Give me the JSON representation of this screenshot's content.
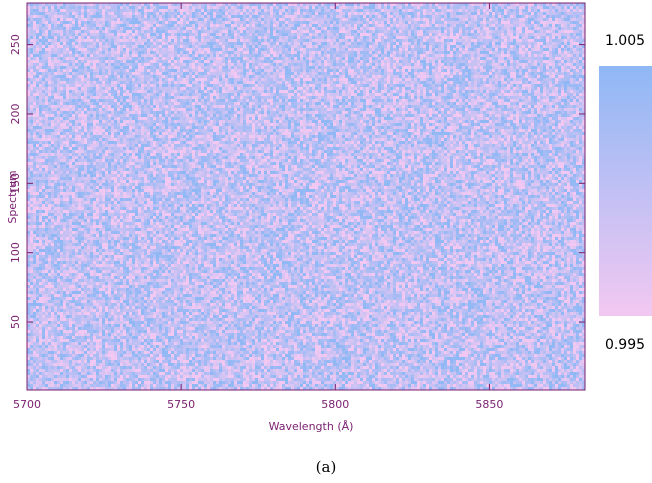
{
  "chart_data": {
    "type": "heatmap",
    "xlabel": "Wavelength (Å)",
    "ylabel": "Spectrum",
    "xlim": [
      5700,
      5881
    ],
    "ylim": [
      1,
      280
    ],
    "xticks": [
      5700,
      5750,
      5800,
      5850
    ],
    "yticks": [
      50,
      100,
      150,
      200,
      250
    ],
    "colorbar": {
      "min": 0.995,
      "max": 1.005,
      "min_label": "0.995",
      "max_label": "1.005",
      "min_color": "#f2c8f2",
      "max_color": "#8fb8f5"
    },
    "values_description": "normalized flux, noise around 1.000",
    "value_range": [
      0.995,
      1.005
    ],
    "mean": 1.0
  },
  "caption": "(a)",
  "colors": {
    "axis": "#7a1f6f"
  }
}
